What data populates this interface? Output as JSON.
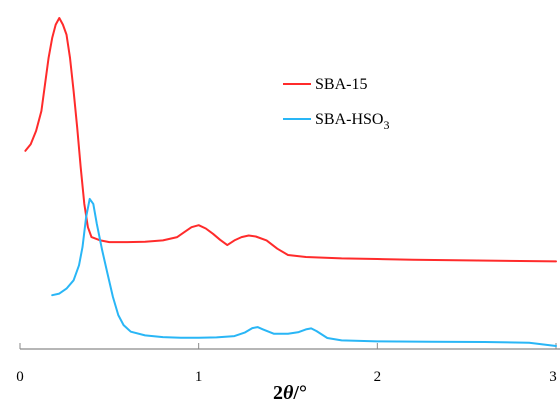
{
  "chart_data": {
    "type": "line",
    "title": "",
    "xlabel": "2θ/°",
    "ylabel": "",
    "xlim": [
      0,
      3
    ],
    "ylim": [
      0,
      100
    ],
    "x_ticks": [
      "0",
      "1",
      "2",
      "3"
    ],
    "y_ticks": [],
    "grid": false,
    "legend_position": "top-right",
    "series": [
      {
        "name": "SBA-15",
        "color": "#ff2b2b",
        "points": [
          [
            0.03,
            60
          ],
          [
            0.06,
            62
          ],
          [
            0.09,
            66
          ],
          [
            0.12,
            72
          ],
          [
            0.14,
            80
          ],
          [
            0.16,
            88
          ],
          [
            0.18,
            94
          ],
          [
            0.2,
            98
          ],
          [
            0.22,
            100
          ],
          [
            0.24,
            98
          ],
          [
            0.26,
            95
          ],
          [
            0.28,
            88
          ],
          [
            0.3,
            78
          ],
          [
            0.32,
            67
          ],
          [
            0.34,
            55
          ],
          [
            0.36,
            44
          ],
          [
            0.38,
            37
          ],
          [
            0.4,
            34
          ],
          [
            0.45,
            33
          ],
          [
            0.5,
            32.5
          ],
          [
            0.6,
            32.5
          ],
          [
            0.7,
            32.6
          ],
          [
            0.8,
            33
          ],
          [
            0.88,
            34
          ],
          [
            0.92,
            35.5
          ],
          [
            0.96,
            37
          ],
          [
            1.0,
            37.6
          ],
          [
            1.04,
            36.6
          ],
          [
            1.08,
            35
          ],
          [
            1.12,
            33.2
          ],
          [
            1.16,
            31.6
          ],
          [
            1.2,
            33
          ],
          [
            1.24,
            34
          ],
          [
            1.28,
            34.5
          ],
          [
            1.32,
            34.2
          ],
          [
            1.38,
            33
          ],
          [
            1.44,
            30.5
          ],
          [
            1.5,
            28.6
          ],
          [
            1.6,
            28
          ],
          [
            1.8,
            27.6
          ],
          [
            2.0,
            27.4
          ],
          [
            2.2,
            27.2
          ],
          [
            2.5,
            27
          ],
          [
            2.8,
            26.8
          ],
          [
            3.0,
            26.7
          ]
        ]
      },
      {
        "name": "SBA-HSO",
        "name_subscript": "3",
        "color": "#29b6f6",
        "points": [
          [
            0.18,
            16.5
          ],
          [
            0.22,
            17
          ],
          [
            0.26,
            18.5
          ],
          [
            0.3,
            21
          ],
          [
            0.33,
            25.5
          ],
          [
            0.35,
            31
          ],
          [
            0.37,
            40
          ],
          [
            0.39,
            45.5
          ],
          [
            0.41,
            44
          ],
          [
            0.43,
            38
          ],
          [
            0.46,
            30
          ],
          [
            0.49,
            23
          ],
          [
            0.52,
            16
          ],
          [
            0.55,
            10.5
          ],
          [
            0.58,
            7.5
          ],
          [
            0.62,
            5.5
          ],
          [
            0.7,
            4.4
          ],
          [
            0.8,
            3.9
          ],
          [
            0.9,
            3.7
          ],
          [
            1.0,
            3.7
          ],
          [
            1.1,
            3.8
          ],
          [
            1.2,
            4.2
          ],
          [
            1.26,
            5.3
          ],
          [
            1.3,
            6.6
          ],
          [
            1.33,
            6.9
          ],
          [
            1.36,
            6.2
          ],
          [
            1.42,
            4.9
          ],
          [
            1.5,
            4.9
          ],
          [
            1.56,
            5.4
          ],
          [
            1.6,
            6.2
          ],
          [
            1.63,
            6.5
          ],
          [
            1.66,
            5.7
          ],
          [
            1.72,
            3.6
          ],
          [
            1.8,
            2.9
          ],
          [
            2.0,
            2.6
          ],
          [
            2.3,
            2.5
          ],
          [
            2.6,
            2.4
          ],
          [
            2.85,
            2.2
          ],
          [
            3.0,
            1.2
          ]
        ]
      }
    ]
  }
}
